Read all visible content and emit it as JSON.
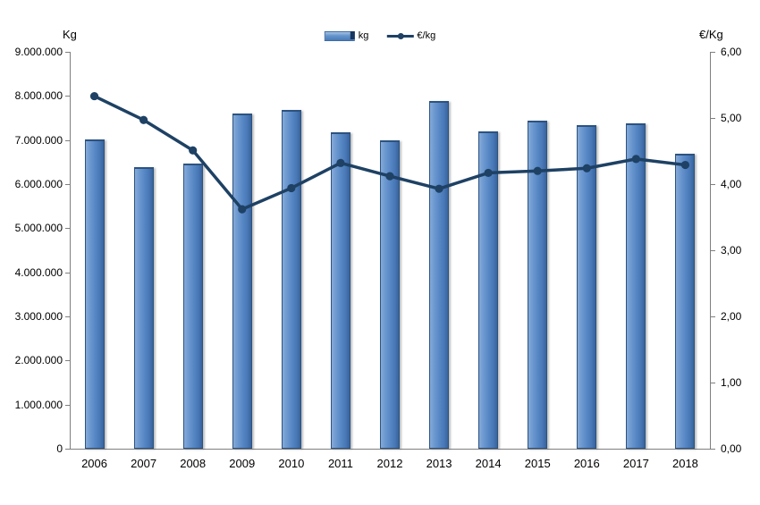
{
  "chart_data": {
    "type": "bar",
    "subtype": "combo-bar-line",
    "title": "",
    "categories": [
      "2006",
      "2007",
      "2008",
      "2009",
      "2010",
      "2011",
      "2012",
      "2013",
      "2014",
      "2015",
      "2016",
      "2017",
      "2018"
    ],
    "series": [
      {
        "name": "kg",
        "type": "bar",
        "axis": "left",
        "color": "#5585C4",
        "values": [
          7010000,
          6390000,
          6460000,
          7610000,
          7690000,
          7170000,
          6990000,
          7890000,
          7200000,
          7440000,
          7340000,
          7370000,
          6680000
        ]
      },
      {
        "name": "€/kg",
        "type": "line",
        "axis": "right",
        "color": "#1E4164",
        "values": [
          5.33,
          4.97,
          4.51,
          3.62,
          3.94,
          4.32,
          4.12,
          3.93,
          4.17,
          4.2,
          4.24,
          4.38,
          4.29
        ]
      }
    ],
    "left_axis": {
      "title": "Kg",
      "min": 0,
      "max": 9000000,
      "step": 1000000,
      "tick_labels": [
        "0",
        "1.000.000",
        "2.000.000",
        "3.000.000",
        "4.000.000",
        "5.000.000",
        "6.000.000",
        "7.000.000",
        "8.000.000",
        "9.000.000"
      ]
    },
    "right_axis": {
      "title": "€/Kg",
      "min": 0,
      "max": 6,
      "step": 1,
      "tick_labels": [
        "0,00",
        "1,00",
        "2,00",
        "3,00",
        "4,00",
        "5,00",
        "6,00"
      ]
    },
    "legend": {
      "position": "top",
      "entries": [
        {
          "label": "kg",
          "marker": "bar-swatch"
        },
        {
          "label": "€/kg",
          "marker": "line-swatch"
        }
      ]
    },
    "grid": false,
    "background": "#FFFFFF"
  },
  "colors": {
    "bar_fill": "#5585C4",
    "bar_light": "#86AAD8",
    "bar_dark": "#37639D",
    "bar_border": "#2C5380",
    "line": "#1E4164",
    "axis": "#7F7F7F",
    "text": "#000000"
  }
}
